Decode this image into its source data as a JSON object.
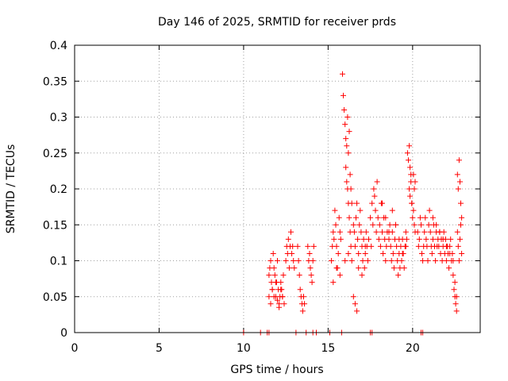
{
  "chart_data": {
    "type": "scatter",
    "title": "Day 146 of 2025, SRMTID for receiver prds",
    "xlabel": "GPS time / hours",
    "ylabel": "SRMTID / TECUs",
    "xlim": [
      0,
      24
    ],
    "ylim": [
      0,
      0.4
    ],
    "xticks": [
      0,
      5,
      10,
      15,
      20
    ],
    "xtick_labels": [
      "0",
      "5",
      "10",
      "15",
      "20"
    ],
    "yticks": [
      0,
      0.05,
      0.1,
      0.15,
      0.2,
      0.25,
      0.3,
      0.35,
      0.4
    ],
    "ytick_labels": [
      "0",
      "0.05",
      "0.1",
      "0.15",
      "0.2",
      "0.25",
      "0.3",
      "0.35",
      "0.4"
    ],
    "grid": true,
    "marker": "+",
    "color": "#ff0000",
    "series": [
      {
        "name": "SRMTID",
        "x": [
          10.0,
          11.0,
          11.4,
          11.5,
          13.1,
          13.7,
          14.1,
          14.3,
          15.1,
          15.8,
          17.5,
          17.6,
          20.5,
          20.6,
          11.5,
          11.55,
          11.6,
          11.65,
          11.7,
          11.75,
          11.8,
          11.85,
          11.9,
          11.95,
          12.0,
          12.05,
          12.1,
          12.15,
          12.2,
          12.25,
          12.3,
          12.35,
          12.4,
          11.5,
          11.6,
          11.7,
          11.8,
          11.9,
          12.0,
          12.1,
          12.2,
          12.3,
          12.5,
          12.55,
          12.6,
          12.65,
          12.7,
          12.75,
          12.8,
          12.85,
          12.9,
          12.95,
          13.0,
          13.2,
          13.25,
          13.3,
          13.35,
          13.4,
          13.45,
          13.5,
          13.55,
          13.6,
          13.8,
          13.85,
          13.9,
          13.95,
          14.0,
          14.05,
          14.1,
          14.15,
          15.2,
          15.25,
          15.3,
          15.35,
          15.4,
          15.45,
          15.5,
          15.55,
          15.6,
          15.65,
          15.7,
          15.75,
          15.85,
          15.9,
          15.95,
          16.0,
          16.05,
          16.1,
          16.15,
          16.2,
          16.25,
          16.3,
          16.35,
          16.4,
          16.05,
          16.1,
          16.15,
          16.2,
          16.25,
          16.3,
          16.35,
          16.4,
          16.5,
          16.55,
          16.6,
          16.65,
          16.7,
          16.75,
          16.8,
          16.85,
          16.9,
          16.95,
          17.0,
          17.05,
          17.1,
          17.15,
          17.2,
          17.25,
          17.3,
          17.35,
          17.4,
          17.5,
          17.55,
          17.6,
          17.65,
          17.7,
          17.75,
          17.8,
          17.85,
          17.9,
          17.95,
          18.0,
          18.05,
          18.1,
          18.15,
          18.2,
          18.25,
          18.3,
          18.35,
          18.4,
          18.45,
          18.5,
          18.6,
          18.65,
          18.7,
          18.75,
          18.8,
          18.85,
          18.9,
          18.95,
          19.0,
          19.05,
          19.1,
          19.15,
          19.2,
          19.25,
          19.3,
          19.35,
          19.4,
          19.45,
          19.5,
          19.55,
          19.6,
          19.65,
          19.7,
          19.75,
          19.8,
          19.85,
          19.9,
          19.95,
          20.0,
          20.05,
          20.1,
          20.15,
          19.8,
          19.85,
          19.9,
          19.95,
          20.05,
          20.1,
          20.15,
          20.3,
          20.35,
          20.4,
          20.45,
          20.5,
          20.55,
          20.6,
          20.65,
          20.7,
          20.75,
          20.8,
          20.85,
          20.9,
          20.95,
          21.0,
          21.05,
          21.1,
          21.15,
          21.2,
          21.25,
          21.3,
          21.35,
          21.4,
          21.45,
          21.5,
          21.55,
          21.6,
          21.65,
          21.7,
          21.75,
          21.8,
          21.85,
          21.9,
          21.95,
          22.0,
          22.05,
          22.1,
          22.15,
          22.2,
          22.25,
          22.3,
          22.35,
          22.4,
          22.45,
          22.5,
          22.55,
          22.6,
          22.4,
          22.5,
          22.6,
          22.65,
          22.7,
          22.75,
          22.8,
          22.85,
          22.9,
          22.65,
          22.7,
          22.75,
          22.8,
          22.85,
          22.9,
          16.5,
          16.6,
          16.7,
          16.8,
          17.0,
          17.2,
          15.3,
          15.5,
          15.7,
          16.0,
          16.2,
          18.2,
          18.4,
          18.6,
          18.8,
          19.0,
          19.2,
          19.4,
          19.6,
          21.2,
          21.4,
          21.6,
          21.8,
          22.0,
          22.2
        ],
        "y": [
          0,
          0,
          0,
          0,
          0,
          0,
          0,
          0,
          0,
          0,
          0,
          0,
          0,
          0,
          0.08,
          0.09,
          0.1,
          0.07,
          0.06,
          0.11,
          0.09,
          0.08,
          0.05,
          0.07,
          0.1,
          0.06,
          0.04,
          0.05,
          0.07,
          0.06,
          0.05,
          0.08,
          0.04,
          0.05,
          0.04,
          0.06,
          0.05,
          0.07,
          0.045,
          0.035,
          0.06,
          0.05,
          0.1,
          0.12,
          0.11,
          0.13,
          0.09,
          0.12,
          0.14,
          0.11,
          0.12,
          0.1,
          0.09,
          0.12,
          0.1,
          0.08,
          0.06,
          0.05,
          0.04,
          0.03,
          0.05,
          0.04,
          0.12,
          0.1,
          0.11,
          0.09,
          0.08,
          0.07,
          0.1,
          0.12,
          0.1,
          0.12,
          0.14,
          0.13,
          0.17,
          0.15,
          0.12,
          0.09,
          0.11,
          0.16,
          0.14,
          0.13,
          0.36,
          0.33,
          0.31,
          0.29,
          0.27,
          0.26,
          0.3,
          0.25,
          0.28,
          0.22,
          0.2,
          0.18,
          0.23,
          0.21,
          0.2,
          0.18,
          0.16,
          0.14,
          0.12,
          0.1,
          0.15,
          0.14,
          0.12,
          0.16,
          0.18,
          0.13,
          0.11,
          0.15,
          0.17,
          0.14,
          0.12,
          0.1,
          0.13,
          0.09,
          0.11,
          0.14,
          0.12,
          0.1,
          0.13,
          0.16,
          0.12,
          0.18,
          0.15,
          0.2,
          0.19,
          0.17,
          0.14,
          0.21,
          0.16,
          0.13,
          0.15,
          0.12,
          0.18,
          0.14,
          0.11,
          0.16,
          0.13,
          0.1,
          0.12,
          0.14,
          0.13,
          0.15,
          0.12,
          0.1,
          0.14,
          0.11,
          0.09,
          0.13,
          0.15,
          0.12,
          0.1,
          0.08,
          0.11,
          0.09,
          0.12,
          0.1,
          0.13,
          0.11,
          0.09,
          0.12,
          0.14,
          0.13,
          0.25,
          0.24,
          0.26,
          0.23,
          0.22,
          0.18,
          0.16,
          0.17,
          0.15,
          0.14,
          0.2,
          0.19,
          0.21,
          0.18,
          0.22,
          0.2,
          0.21,
          0.14,
          0.12,
          0.13,
          0.16,
          0.15,
          0.11,
          0.1,
          0.12,
          0.14,
          0.16,
          0.13,
          0.12,
          0.1,
          0.15,
          0.17,
          0.14,
          0.12,
          0.11,
          0.13,
          0.15,
          0.12,
          0.1,
          0.14,
          0.12,
          0.13,
          0.12,
          0.14,
          0.11,
          0.13,
          0.1,
          0.12,
          0.14,
          0.11,
          0.13,
          0.1,
          0.12,
          0.11,
          0.09,
          0.12,
          0.13,
          0.1,
          0.11,
          0.08,
          0.06,
          0.05,
          0.04,
          0.03,
          0.1,
          0.07,
          0.05,
          0.22,
          0.2,
          0.24,
          0.21,
          0.18,
          0.16,
          0.14,
          0.12,
          0.1,
          0.13,
          0.15,
          0.11,
          0.05,
          0.04,
          0.03,
          0.09,
          0.08,
          0.12,
          0.07,
          0.09,
          0.08,
          0.1,
          0.11,
          0.18,
          0.16,
          0.14,
          0.17,
          0.15,
          0.13,
          0.11,
          0.12,
          0.16,
          0.15,
          0.14,
          0.13,
          0.12,
          0.11
        ]
      }
    ]
  }
}
